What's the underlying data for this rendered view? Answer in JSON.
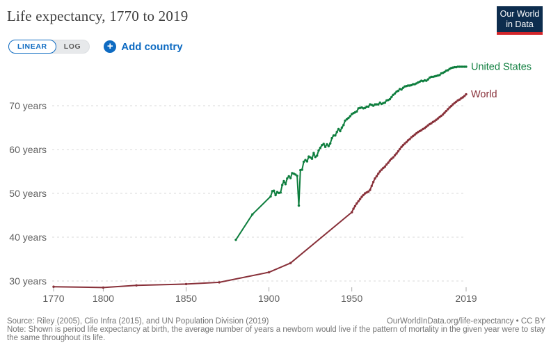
{
  "header": {
    "title": "Life expectancy, 1770 to 2019",
    "logo": {
      "line1": "Our World",
      "line2": "in Data"
    }
  },
  "controls": {
    "linear_label": "LINEAR",
    "log_label": "LOG",
    "add_country_label": "Add country",
    "plus_icon": "+"
  },
  "footer": {
    "source": "Source: Riley (2005), Clio Infra (2015), and UN Population Division (2019)",
    "link": "OurWorldInData.org/life-expectancy • CC BY",
    "note": "Note: Shown is period life expectancy at birth, the average number of years a newborn would live if the pattern of mortality in the given year were to stay the same throughout its life."
  },
  "colors": {
    "us_green": "#0E7E3E",
    "world_maroon": "#883039",
    "accent_blue": "#0E6BC2",
    "logo_navy": "#0D2D4E",
    "logo_red": "#D2262B",
    "gridline": "#DADADA",
    "axis_text": "#606060"
  },
  "chart_data": {
    "type": "line",
    "title": "Life expectancy, 1770 to 2019",
    "xlabel": "",
    "ylabel": "",
    "xlim": [
      1770,
      2019
    ],
    "ylim": [
      27,
      80
    ],
    "grid": "horizontal-dashed",
    "legend_position": "line-end-right",
    "x_ticks": [
      {
        "value": 1770,
        "label": "1770"
      },
      {
        "value": 1800,
        "label": "1800"
      },
      {
        "value": 1850,
        "label": "1850"
      },
      {
        "value": 1900,
        "label": "1900"
      },
      {
        "value": 1950,
        "label": "1950"
      },
      {
        "value": 2019,
        "label": "2019"
      }
    ],
    "y_ticks": [
      {
        "value": 30,
        "label": "30 years"
      },
      {
        "value": 40,
        "label": "40 years"
      },
      {
        "value": 50,
        "label": "50 years"
      },
      {
        "value": 60,
        "label": "60 years"
      },
      {
        "value": 70,
        "label": "70 years"
      }
    ],
    "series": [
      {
        "id": "united-states",
        "name": "United States",
        "color": "#0E7E3E",
        "points": [
          [
            1880,
            39.4
          ],
          [
            1890,
            45.2
          ],
          [
            1901,
            49.3
          ],
          [
            1902,
            50.5
          ],
          [
            1903,
            50.6
          ],
          [
            1904,
            49.6
          ],
          [
            1905,
            50.3
          ],
          [
            1906,
            50.1
          ],
          [
            1907,
            50.2
          ],
          [
            1908,
            51.9
          ],
          [
            1909,
            52.8
          ],
          [
            1910,
            52.1
          ],
          [
            1911,
            53.4
          ],
          [
            1912,
            53.9
          ],
          [
            1913,
            53.5
          ],
          [
            1914,
            54.6
          ],
          [
            1915,
            54.5
          ],
          [
            1916,
            54.3
          ],
          [
            1917,
            54.0
          ],
          [
            1918,
            47.2
          ],
          [
            1919,
            55.3
          ],
          [
            1920,
            55.4
          ],
          [
            1921,
            57.2
          ],
          [
            1922,
            57.6
          ],
          [
            1923,
            57.3
          ],
          [
            1924,
            58.4
          ],
          [
            1925,
            58.2
          ],
          [
            1926,
            57.9
          ],
          [
            1927,
            59.2
          ],
          [
            1928,
            58.3
          ],
          [
            1929,
            58.6
          ],
          [
            1930,
            59.8
          ],
          [
            1931,
            60.4
          ],
          [
            1932,
            61.0
          ],
          [
            1933,
            61.3
          ],
          [
            1934,
            60.6
          ],
          [
            1935,
            61.2
          ],
          [
            1936,
            60.8
          ],
          [
            1937,
            61.4
          ],
          [
            1938,
            62.6
          ],
          [
            1939,
            63.2
          ],
          [
            1940,
            63.2
          ],
          [
            1941,
            64.0
          ],
          [
            1942,
            64.7
          ],
          [
            1943,
            64.2
          ],
          [
            1944,
            65.0
          ],
          [
            1945,
            65.6
          ],
          [
            1946,
            66.6
          ],
          [
            1947,
            66.9
          ],
          [
            1948,
            67.2
          ],
          [
            1949,
            67.6
          ],
          [
            1950,
            68.1
          ],
          [
            1951,
            68.3
          ],
          [
            1952,
            68.5
          ],
          [
            1953,
            68.7
          ],
          [
            1954,
            69.4
          ],
          [
            1955,
            69.5
          ],
          [
            1956,
            69.6
          ],
          [
            1957,
            69.4
          ],
          [
            1958,
            69.5
          ],
          [
            1959,
            69.8
          ],
          [
            1960,
            69.8
          ],
          [
            1961,
            70.3
          ],
          [
            1962,
            70.2
          ],
          [
            1963,
            70.0
          ],
          [
            1964,
            70.3
          ],
          [
            1965,
            70.3
          ],
          [
            1966,
            70.3
          ],
          [
            1967,
            70.7
          ],
          [
            1968,
            70.4
          ],
          [
            1969,
            70.6
          ],
          [
            1970,
            70.7
          ],
          [
            1971,
            71.2
          ],
          [
            1972,
            71.3
          ],
          [
            1973,
            71.5
          ],
          [
            1974,
            72.0
          ],
          [
            1975,
            72.5
          ],
          [
            1976,
            72.8
          ],
          [
            1977,
            73.2
          ],
          [
            1978,
            73.4
          ],
          [
            1979,
            73.8
          ],
          [
            1980,
            73.7
          ],
          [
            1981,
            74.1
          ],
          [
            1982,
            74.4
          ],
          [
            1983,
            74.5
          ],
          [
            1984,
            74.6
          ],
          [
            1985,
            74.6
          ],
          [
            1986,
            74.7
          ],
          [
            1987,
            74.9
          ],
          [
            1988,
            74.9
          ],
          [
            1989,
            75.1
          ],
          [
            1990,
            75.3
          ],
          [
            1991,
            75.5
          ],
          [
            1992,
            75.7
          ],
          [
            1993,
            75.6
          ],
          [
            1994,
            75.8
          ],
          [
            1995,
            75.7
          ],
          [
            1996,
            76.0
          ],
          [
            1997,
            76.4
          ],
          [
            1998,
            76.6
          ],
          [
            1999,
            76.6
          ],
          [
            2000,
            76.7
          ],
          [
            2001,
            76.8
          ],
          [
            2002,
            76.9
          ],
          [
            2003,
            77.0
          ],
          [
            2004,
            77.4
          ],
          [
            2005,
            77.5
          ],
          [
            2006,
            77.7
          ],
          [
            2007,
            78.0
          ],
          [
            2008,
            78.1
          ],
          [
            2009,
            78.4
          ],
          [
            2010,
            78.6
          ],
          [
            2011,
            78.7
          ],
          [
            2012,
            78.8
          ],
          [
            2013,
            78.8
          ],
          [
            2014,
            78.9
          ],
          [
            2015,
            78.9
          ],
          [
            2016,
            78.9
          ],
          [
            2017,
            78.9
          ],
          [
            2018,
            78.9
          ],
          [
            2019,
            78.9
          ]
        ]
      },
      {
        "id": "world",
        "name": "World",
        "color": "#883039",
        "points": [
          [
            1770,
            28.7
          ],
          [
            1800,
            28.5
          ],
          [
            1820,
            29.0
          ],
          [
            1850,
            29.3
          ],
          [
            1870,
            29.7
          ],
          [
            1900,
            32.0
          ],
          [
            1913,
            34.1
          ],
          [
            1950,
            45.7
          ],
          [
            1951,
            46.5
          ],
          [
            1952,
            47.1
          ],
          [
            1953,
            47.7
          ],
          [
            1954,
            48.2
          ],
          [
            1955,
            48.7
          ],
          [
            1956,
            49.2
          ],
          [
            1957,
            49.6
          ],
          [
            1958,
            50.0
          ],
          [
            1959,
            50.2
          ],
          [
            1960,
            50.4
          ],
          [
            1961,
            50.8
          ],
          [
            1962,
            51.7
          ],
          [
            1963,
            52.6
          ],
          [
            1964,
            53.4
          ],
          [
            1965,
            53.9
          ],
          [
            1966,
            54.5
          ],
          [
            1967,
            55.0
          ],
          [
            1968,
            55.4
          ],
          [
            1969,
            55.8
          ],
          [
            1970,
            56.1
          ],
          [
            1971,
            56.6
          ],
          [
            1972,
            57.0
          ],
          [
            1973,
            57.5
          ],
          [
            1974,
            57.9
          ],
          [
            1975,
            58.2
          ],
          [
            1976,
            58.7
          ],
          [
            1977,
            59.1
          ],
          [
            1978,
            59.6
          ],
          [
            1979,
            60.1
          ],
          [
            1980,
            60.6
          ],
          [
            1981,
            61.0
          ],
          [
            1982,
            61.4
          ],
          [
            1983,
            61.7
          ],
          [
            1984,
            62.1
          ],
          [
            1985,
            62.4
          ],
          [
            1986,
            62.8
          ],
          [
            1987,
            63.1
          ],
          [
            1988,
            63.4
          ],
          [
            1989,
            63.7
          ],
          [
            1990,
            64.0
          ],
          [
            1991,
            64.2
          ],
          [
            1992,
            64.4
          ],
          [
            1993,
            64.7
          ],
          [
            1994,
            64.9
          ],
          [
            1995,
            65.2
          ],
          [
            1996,
            65.5
          ],
          [
            1997,
            65.8
          ],
          [
            1998,
            66.0
          ],
          [
            1999,
            66.3
          ],
          [
            2000,
            66.5
          ],
          [
            2001,
            66.8
          ],
          [
            2002,
            67.1
          ],
          [
            2003,
            67.4
          ],
          [
            2004,
            67.7
          ],
          [
            2005,
            68.0
          ],
          [
            2006,
            68.4
          ],
          [
            2007,
            68.8
          ],
          [
            2008,
            69.2
          ],
          [
            2009,
            69.6
          ],
          [
            2010,
            69.9
          ],
          [
            2011,
            70.3
          ],
          [
            2012,
            70.6
          ],
          [
            2013,
            70.9
          ],
          [
            2014,
            71.2
          ],
          [
            2015,
            71.4
          ],
          [
            2016,
            71.7
          ],
          [
            2017,
            71.9
          ],
          [
            2018,
            72.2
          ],
          [
            2019,
            72.6
          ]
        ]
      }
    ]
  }
}
